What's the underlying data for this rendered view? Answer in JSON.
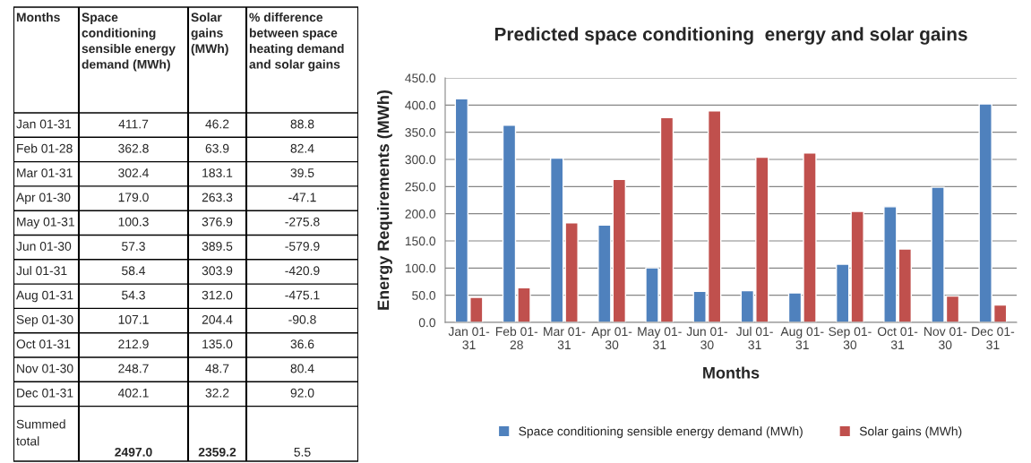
{
  "chart_data": [
    {
      "type": "other",
      "xlabel": "Months",
      "categories": [
        "Jan 01-31",
        "Feb 01-28",
        "Mar 01-31",
        "Apr 01-30",
        "May 01-31",
        "Jun 01-30",
        "Jul 01-31",
        "Aug 01-31",
        "Sep 01-30",
        "Oct 01-31",
        "Nov 01-30",
        "Dec 01-31",
        "Summed total"
      ],
      "series": [
        {
          "name": "Space conditioning sensible energy demand (MWh)",
          "values": [
            411.7,
            362.8,
            302.4,
            179.0,
            100.3,
            57.3,
            58.4,
            54.3,
            107.1,
            212.9,
            248.7,
            402.1,
            2497.0
          ],
          "value_labels": [
            "411.7",
            "362.8",
            "302.4",
            "179.0",
            "100.3",
            "57.3",
            "58.4",
            "54.3",
            "107.1",
            "212.9",
            "248.7",
            "402.1",
            "2497.0"
          ]
        },
        {
          "name": "Solar gains (MWh)",
          "values": [
            46.2,
            63.9,
            183.1,
            263.3,
            376.9,
            389.5,
            303.9,
            312.0,
            204.4,
            135.0,
            48.7,
            32.2,
            2359.2
          ],
          "value_labels": [
            "46.2",
            "63.9",
            "183.1",
            "263.3",
            "376.9",
            "389.5",
            "303.9",
            "312.0",
            "204.4",
            "135.0",
            "48.7",
            "32.2",
            "2359.2"
          ]
        },
        {
          "name": "% difference between space heating demand and solar gains",
          "values": [
            88.8,
            82.4,
            39.5,
            -47.1,
            -275.8,
            -579.9,
            -420.9,
            -475.1,
            -90.8,
            36.6,
            80.4,
            92.0,
            5.5
          ],
          "value_labels": [
            "88.8",
            "82.4",
            "39.5",
            "-47.1",
            "-275.8",
            "-579.9",
            "-420.9",
            "-475.1",
            "-90.8",
            "36.6",
            "80.4",
            "92.0",
            "5.5"
          ]
        }
      ]
    },
    {
      "type": "bar",
      "title": "Predicted space conditioning  energy and solar gains",
      "xlabel": "Months",
      "ylabel": "Energy Requirements (MWh)",
      "categories": [
        "Jan 01-31",
        "Feb 01-28",
        "Mar 01-31",
        "Apr 01-30",
        "May 01-31",
        "Jun 01-30",
        "Jul 01-31",
        "Aug 01-31",
        "Sep 01-30",
        "Oct 01-31",
        "Nov 01-30",
        "Dec 01-31"
      ],
      "series": [
        {
          "name": "Space conditioning sensible energy demand (MWh)",
          "color": "#4f81bd",
          "values": [
            411.7,
            362.8,
            302.4,
            179.0,
            100.3,
            57.3,
            58.4,
            54.3,
            107.1,
            212.9,
            248.7,
            402.1
          ]
        },
        {
          "name": "Solar gains (MWh)",
          "color": "#c0504d",
          "values": [
            46.2,
            63.9,
            183.1,
            263.3,
            376.9,
            389.5,
            303.9,
            312.0,
            204.4,
            135.0,
            48.7,
            32.2
          ]
        }
      ],
      "ylim": [
        0,
        450
      ],
      "yticks": [
        {
          "value": 0,
          "label": "0.0"
        },
        {
          "value": 50,
          "label": "50.0"
        },
        {
          "value": 100,
          "label": "100.0"
        },
        {
          "value": 150,
          "label": "150.0"
        },
        {
          "value": 200,
          "label": "200.0"
        },
        {
          "value": 250,
          "label": "250.0"
        },
        {
          "value": 300,
          "label": "300.0"
        },
        {
          "value": 350,
          "label": "350.0"
        },
        {
          "value": 400,
          "label": "400.0"
        },
        {
          "value": 450,
          "label": "450.0"
        }
      ],
      "grid": "y",
      "legend": "bottom"
    }
  ]
}
